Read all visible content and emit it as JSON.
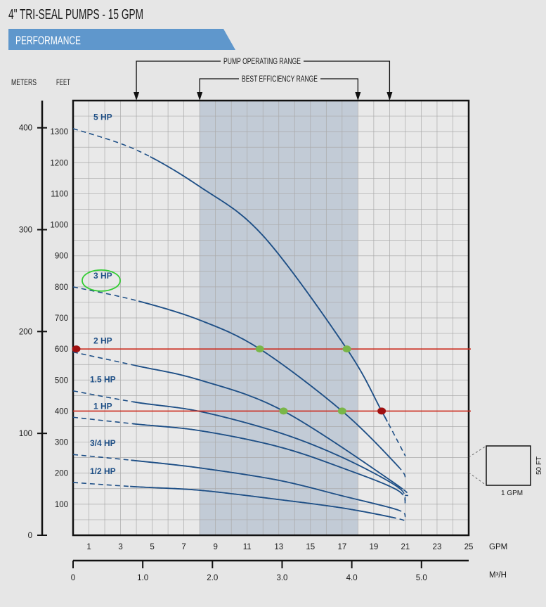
{
  "header": {
    "title": "4\" TRI-SEAL PUMPS - 15 GPM",
    "section": "PERFORMANCE"
  },
  "annotations": {
    "operating_range_label": "PUMP OPERATING RANGE",
    "efficiency_range_label": "BEST EFFICIENCY RANGE",
    "scale_box_height": "50 FT",
    "scale_box_width": "1 GPM"
  },
  "colors": {
    "curve": "#1e4f86",
    "band": "#c2cbd6",
    "operating_line": "#cc2a1c",
    "green_dot": "#7ab648",
    "red_dot": "#a01010",
    "banner": "#5f97cc",
    "bg": "#e6e6e6"
  },
  "chart_data": {
    "type": "line",
    "title": "4\" TRI-SEAL PUMPS - 15 GPM",
    "xlabel": "GPM",
    "x2label": "M³/H",
    "ylabel": "FEET",
    "y2label": "METERS",
    "xlim": [
      0,
      25
    ],
    "ylim": [
      0,
      1400
    ],
    "grid": true,
    "x_ticks": [
      "1",
      "3",
      "5",
      "7",
      "9",
      "11",
      "13",
      "15",
      "17",
      "19",
      "21",
      "23",
      "25"
    ],
    "x2_ticks": [
      "0",
      "1.0",
      "2.0",
      "3.0",
      "4.0",
      "5.0"
    ],
    "y_ticks": [
      "100",
      "200",
      "300",
      "400",
      "500",
      "600",
      "700",
      "800",
      "900",
      "1000",
      "1100",
      "1200",
      "1300"
    ],
    "y2_ticks": [
      "0",
      "100",
      "200",
      "300",
      "400"
    ],
    "operating_range_gpm": [
      4,
      20
    ],
    "best_efficiency_range_gpm": [
      8,
      18
    ],
    "operating_lines_ft": [
      600,
      400
    ],
    "series": [
      {
        "name": "5 HP",
        "x": [
          0,
          4,
          8,
          12,
          17.3,
          19.5,
          21
        ],
        "y": [
          1310,
          1241,
          1123,
          965,
          600,
          400,
          255
        ]
      },
      {
        "name": "3 HP",
        "x": [
          0,
          4,
          8,
          11.8,
          17,
          20.5,
          21
        ],
        "y": [
          800,
          756,
          693,
          600,
          400,
          224,
          183
        ],
        "highlighted": true
      },
      {
        "name": "2 HP",
        "x": [
          0,
          4,
          8,
          13.3,
          20.5,
          21
        ],
        "y": [
          590,
          546,
          500,
          400,
          161,
          127
        ]
      },
      {
        "name": "1.5 HP",
        "x": [
          0,
          4,
          8,
          13,
          17,
          20.5,
          21
        ],
        "y": [
          465,
          428,
          399,
          331,
          251,
          156,
          111
        ]
      },
      {
        "name": "1 HP",
        "x": [
          0,
          4,
          8,
          13,
          17,
          20.5,
          21
        ],
        "y": [
          380,
          358,
          337,
          285,
          217,
          145,
          97
        ]
      },
      {
        "name": "3/4 HP",
        "x": [
          0,
          4,
          8,
          13,
          17,
          20.5,
          21
        ],
        "y": [
          260,
          240,
          217,
          177,
          127,
          82,
          59
        ]
      },
      {
        "name": "1/2 HP",
        "x": [
          0,
          4,
          8,
          13,
          17,
          20.5,
          21
        ],
        "y": [
          170,
          156,
          145,
          115,
          88,
          54,
          43
        ]
      }
    ],
    "green_points": [
      [
        11.8,
        600
      ],
      [
        17.3,
        600
      ],
      [
        13.3,
        400
      ],
      [
        17,
        400
      ]
    ],
    "red_points": [
      [
        0.2,
        600
      ],
      [
        19.5,
        400
      ]
    ]
  }
}
